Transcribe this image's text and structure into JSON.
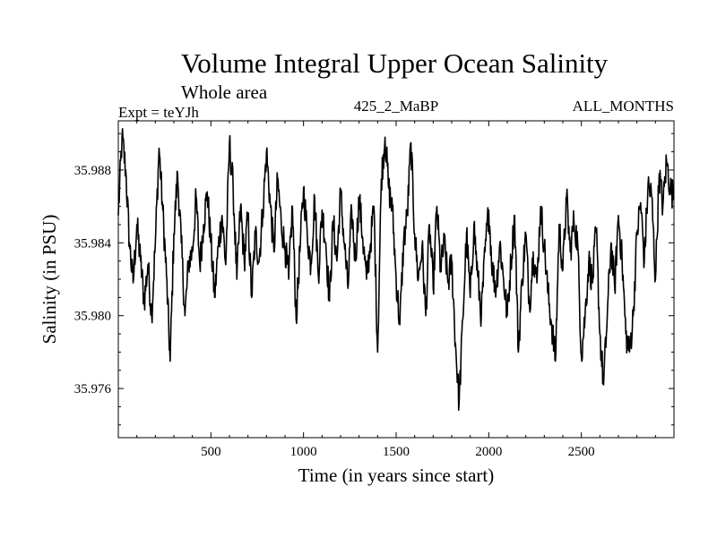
{
  "chart_data": {
    "type": "line",
    "title": "Volume Integral Upper Ocean Salinity",
    "subtitle": "Whole area",
    "expt_label": "Expt = teYJh",
    "run_label": "425_2_MaBP",
    "period_label": "ALL_MONTHS",
    "xlabel": "Time (in years since start)",
    "ylabel": "Salinity (in PSU)",
    "xlim": [
      0,
      3000
    ],
    "ylim": [
      35.9733,
      35.9907
    ],
    "x_ticks": [
      500,
      1000,
      1500,
      2000,
      2500
    ],
    "x_tick_labels": [
      "500",
      "1000",
      "1500",
      "2000",
      "2500"
    ],
    "y_ticks": [
      35.976,
      35.98,
      35.984,
      35.988
    ],
    "y_tick_labels": [
      "35.976",
      "35.980",
      "35.984",
      "35.988"
    ],
    "series": [
      {
        "name": "salinity",
        "x": [
          0,
          20,
          40,
          60,
          80,
          100,
          120,
          140,
          160,
          180,
          200,
          220,
          240,
          260,
          280,
          300,
          320,
          340,
          360,
          380,
          400,
          420,
          440,
          460,
          480,
          500,
          520,
          540,
          560,
          580,
          600,
          620,
          640,
          660,
          680,
          700,
          720,
          740,
          760,
          780,
          800,
          820,
          840,
          860,
          880,
          900,
          920,
          940,
          960,
          980,
          1000,
          1020,
          1040,
          1060,
          1080,
          1100,
          1120,
          1140,
          1160,
          1180,
          1200,
          1220,
          1240,
          1260,
          1280,
          1300,
          1320,
          1340,
          1360,
          1380,
          1400,
          1420,
          1440,
          1460,
          1480,
          1500,
          1520,
          1540,
          1560,
          1580,
          1600,
          1620,
          1640,
          1660,
          1680,
          1700,
          1720,
          1740,
          1760,
          1780,
          1800,
          1820,
          1840,
          1860,
          1880,
          1900,
          1920,
          1940,
          1960,
          1980,
          2000,
          2020,
          2040,
          2060,
          2080,
          2100,
          2120,
          2140,
          2160,
          2180,
          2200,
          2220,
          2240,
          2260,
          2280,
          2300,
          2320,
          2340,
          2360,
          2380,
          2400,
          2420,
          2440,
          2460,
          2480,
          2500,
          2520,
          2540,
          2560,
          2580,
          2600,
          2620,
          2640,
          2660,
          2680,
          2700,
          2720,
          2740,
          2760,
          2780,
          2800,
          2820,
          2840,
          2860,
          2880,
          2900,
          2920,
          2940,
          2960,
          2980,
          3000
        ],
        "values": [
          35.9855,
          35.9898,
          35.988,
          35.984,
          35.9818,
          35.985,
          35.983,
          35.9808,
          35.9828,
          35.98,
          35.984,
          35.9892,
          35.9858,
          35.9822,
          35.9775,
          35.9845,
          35.9878,
          35.984,
          35.98,
          35.983,
          35.9835,
          35.9865,
          35.9828,
          35.985,
          35.9868,
          35.984,
          35.981,
          35.9838,
          35.9855,
          35.9828,
          35.9895,
          35.987,
          35.982,
          35.986,
          35.983,
          35.9855,
          35.981,
          35.9845,
          35.983,
          35.9858,
          35.989,
          35.9862,
          35.9835,
          35.9875,
          35.985,
          35.9838,
          35.982,
          35.986,
          35.9798,
          35.9835,
          35.987,
          35.9845,
          35.9828,
          35.9865,
          35.9822,
          35.9858,
          35.984,
          35.9808,
          35.9852,
          35.983,
          35.9868,
          35.984,
          35.9815,
          35.9858,
          35.983,
          35.9865,
          35.9842,
          35.982,
          35.9838,
          35.986,
          35.978,
          35.9875,
          35.9898,
          35.987,
          35.9858,
          35.982,
          35.9795,
          35.984,
          35.9855,
          35.9895,
          35.9845,
          35.982,
          35.9838,
          35.98,
          35.985,
          35.9815,
          35.986,
          35.9825,
          35.984,
          35.9818,
          35.983,
          35.9785,
          35.9752,
          35.9798,
          35.9845,
          35.981,
          35.985,
          35.9822,
          35.98,
          35.9835,
          35.9858,
          35.9825,
          35.9815,
          35.984,
          35.982,
          35.98,
          35.983,
          35.9855,
          35.978,
          35.982,
          35.9845,
          35.9805,
          35.9835,
          35.9818,
          35.986,
          35.9838,
          35.9812,
          35.9795,
          35.9775,
          35.985,
          35.9825,
          35.9865,
          35.9835,
          35.9852,
          35.984,
          35.9778,
          35.98,
          35.983,
          35.9818,
          35.9848,
          35.979,
          35.9762,
          35.98,
          35.984,
          35.9815,
          35.9855,
          35.983,
          35.979,
          35.978,
          35.98,
          35.9845,
          35.9862,
          35.983,
          35.9872,
          35.9865,
          35.982,
          35.9878,
          35.986,
          35.9885,
          35.987,
          35.9865
        ]
      }
    ]
  }
}
